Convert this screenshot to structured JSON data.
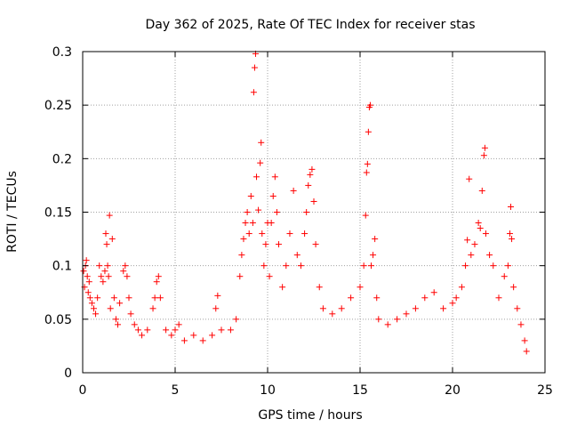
{
  "chart_data": {
    "type": "scatter",
    "title": "Day 362 of 2025, Rate Of TEC Index for receiver stas",
    "xlabel": "GPS time / hours",
    "ylabel": "ROTI / TECUs",
    "xlim": [
      0,
      25
    ],
    "ylim": [
      0,
      0.3
    ],
    "xticks": [
      0,
      5,
      10,
      15,
      20,
      25
    ],
    "yticks": [
      0,
      0.05,
      0.1,
      0.15,
      0.2,
      0.25,
      0.3
    ],
    "xtick_labels": [
      "0",
      "5",
      "10",
      "15",
      "20",
      "25"
    ],
    "ytick_labels": [
      "0",
      "0.05",
      "0.1",
      "0.15",
      "0.2",
      "0.25",
      "0.3"
    ],
    "grid": true,
    "marker": "+",
    "series": [
      {
        "name": "ROTI",
        "color": "#ff0000",
        "points": [
          [
            0.05,
            0.095
          ],
          [
            0.1,
            0.08
          ],
          [
            0.15,
            0.1
          ],
          [
            0.2,
            0.105
          ],
          [
            0.25,
            0.09
          ],
          [
            0.3,
            0.075
          ],
          [
            0.35,
            0.085
          ],
          [
            0.4,
            0.07
          ],
          [
            0.5,
            0.065
          ],
          [
            0.6,
            0.06
          ],
          [
            0.7,
            0.055
          ],
          [
            0.8,
            0.07
          ],
          [
            0.9,
            0.1
          ],
          [
            1.0,
            0.09
          ],
          [
            1.1,
            0.085
          ],
          [
            1.2,
            0.095
          ],
          [
            1.25,
            0.13
          ],
          [
            1.3,
            0.12
          ],
          [
            1.35,
            0.1
          ],
          [
            1.4,
            0.09
          ],
          [
            1.45,
            0.147
          ],
          [
            1.5,
            0.06
          ],
          [
            1.6,
            0.125
          ],
          [
            1.7,
            0.07
          ],
          [
            1.8,
            0.05
          ],
          [
            1.9,
            0.045
          ],
          [
            2.0,
            0.065
          ],
          [
            2.2,
            0.095
          ],
          [
            2.3,
            0.1
          ],
          [
            2.4,
            0.09
          ],
          [
            2.5,
            0.07
          ],
          [
            2.6,
            0.055
          ],
          [
            2.8,
            0.045
          ],
          [
            3.0,
            0.04
          ],
          [
            3.2,
            0.035
          ],
          [
            3.5,
            0.04
          ],
          [
            3.8,
            0.06
          ],
          [
            3.9,
            0.07
          ],
          [
            4.0,
            0.085
          ],
          [
            4.1,
            0.09
          ],
          [
            4.2,
            0.07
          ],
          [
            4.5,
            0.04
          ],
          [
            4.8,
            0.035
          ],
          [
            5.0,
            0.04
          ],
          [
            5.2,
            0.045
          ],
          [
            5.5,
            0.03
          ],
          [
            6.0,
            0.035
          ],
          [
            6.5,
            0.03
          ],
          [
            7.0,
            0.035
          ],
          [
            7.2,
            0.06
          ],
          [
            7.3,
            0.072
          ],
          [
            7.5,
            0.04
          ],
          [
            8.0,
            0.04
          ],
          [
            8.3,
            0.05
          ],
          [
            8.5,
            0.09
          ],
          [
            8.6,
            0.11
          ],
          [
            8.7,
            0.125
          ],
          [
            8.8,
            0.14
          ],
          [
            8.9,
            0.15
          ],
          [
            9.0,
            0.13
          ],
          [
            9.1,
            0.165
          ],
          [
            9.2,
            0.14
          ],
          [
            9.25,
            0.262
          ],
          [
            9.3,
            0.285
          ],
          [
            9.35,
            0.298
          ],
          [
            9.4,
            0.183
          ],
          [
            9.5,
            0.152
          ],
          [
            9.6,
            0.196
          ],
          [
            9.65,
            0.215
          ],
          [
            9.7,
            0.13
          ],
          [
            9.8,
            0.1
          ],
          [
            9.9,
            0.12
          ],
          [
            10.0,
            0.14
          ],
          [
            10.1,
            0.09
          ],
          [
            10.2,
            0.14
          ],
          [
            10.3,
            0.165
          ],
          [
            10.4,
            0.183
          ],
          [
            10.5,
            0.15
          ],
          [
            10.6,
            0.12
          ],
          [
            10.8,
            0.08
          ],
          [
            11.0,
            0.1
          ],
          [
            11.2,
            0.13
          ],
          [
            11.4,
            0.17
          ],
          [
            11.6,
            0.11
          ],
          [
            11.8,
            0.1
          ],
          [
            12.0,
            0.13
          ],
          [
            12.1,
            0.15
          ],
          [
            12.2,
            0.175
          ],
          [
            12.3,
            0.185
          ],
          [
            12.4,
            0.19
          ],
          [
            12.5,
            0.16
          ],
          [
            12.6,
            0.12
          ],
          [
            12.8,
            0.08
          ],
          [
            13.0,
            0.06
          ],
          [
            13.5,
            0.055
          ],
          [
            14.0,
            0.06
          ],
          [
            14.5,
            0.07
          ],
          [
            15.0,
            0.08
          ],
          [
            15.2,
            0.1
          ],
          [
            15.3,
            0.147
          ],
          [
            15.35,
            0.187
          ],
          [
            15.4,
            0.195
          ],
          [
            15.45,
            0.225
          ],
          [
            15.5,
            0.248
          ],
          [
            15.55,
            0.25
          ],
          [
            15.6,
            0.1
          ],
          [
            15.7,
            0.11
          ],
          [
            15.8,
            0.125
          ],
          [
            15.9,
            0.07
          ],
          [
            16.0,
            0.05
          ],
          [
            16.5,
            0.045
          ],
          [
            17.0,
            0.05
          ],
          [
            17.5,
            0.055
          ],
          [
            18.0,
            0.06
          ],
          [
            18.5,
            0.07
          ],
          [
            19.0,
            0.075
          ],
          [
            19.5,
            0.06
          ],
          [
            20.0,
            0.065
          ],
          [
            20.2,
            0.07
          ],
          [
            20.5,
            0.08
          ],
          [
            20.7,
            0.1
          ],
          [
            20.8,
            0.124
          ],
          [
            20.9,
            0.181
          ],
          [
            21.0,
            0.11
          ],
          [
            21.2,
            0.12
          ],
          [
            21.4,
            0.14
          ],
          [
            21.5,
            0.135
          ],
          [
            21.6,
            0.17
          ],
          [
            21.7,
            0.203
          ],
          [
            21.75,
            0.21
          ],
          [
            21.8,
            0.13
          ],
          [
            22.0,
            0.11
          ],
          [
            22.2,
            0.1
          ],
          [
            22.5,
            0.07
          ],
          [
            22.8,
            0.09
          ],
          [
            23.0,
            0.1
          ],
          [
            23.1,
            0.13
          ],
          [
            23.15,
            0.155
          ],
          [
            23.2,
            0.125
          ],
          [
            23.3,
            0.08
          ],
          [
            23.5,
            0.06
          ],
          [
            23.7,
            0.045
          ],
          [
            23.9,
            0.03
          ],
          [
            24.0,
            0.02
          ]
        ]
      }
    ]
  }
}
